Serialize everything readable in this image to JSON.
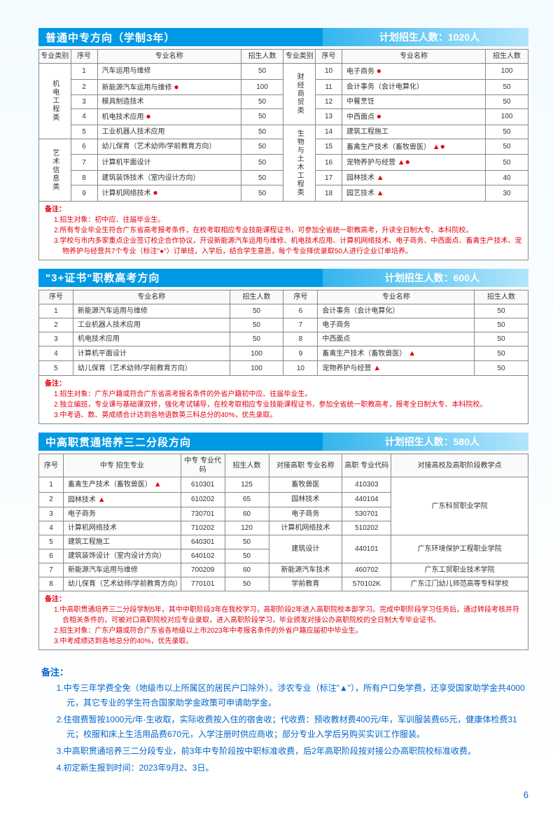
{
  "section1": {
    "title": "普通中专方向（学制3年）",
    "count": "计划招生人数：1020人",
    "headers": [
      "专业类别",
      "序号",
      "专业名称",
      "招生人数",
      "专业类别",
      "序号",
      "专业名称",
      "招生人数"
    ],
    "cat1": "机电工程类",
    "cat2": "艺术信息类",
    "cat3": "财经商贸类",
    "cat4": "生物与土木工程类",
    "rows_left": [
      {
        "n": "1",
        "name": "汽车运用与维修",
        "mark": "",
        "cnt": "50"
      },
      {
        "n": "2",
        "name": "新能源汽车运用与维修",
        "mark": "●",
        "cnt": "100"
      },
      {
        "n": "3",
        "name": "模具制造技术",
        "mark": "",
        "cnt": "50"
      },
      {
        "n": "4",
        "name": "机电技术应用",
        "mark": "●",
        "cnt": "50"
      },
      {
        "n": "5",
        "name": "工业机器人技术应用",
        "mark": "",
        "cnt": "50"
      },
      {
        "n": "6",
        "name": "幼儿保育（艺术幼师/学前教育方向）",
        "mark": "",
        "cnt": "50"
      },
      {
        "n": "7",
        "name": "计算机平面设计",
        "mark": "",
        "cnt": "50"
      },
      {
        "n": "8",
        "name": "建筑装饰技术（室内设计方向）",
        "mark": "",
        "cnt": "50"
      },
      {
        "n": "9",
        "name": "计算机网络技术",
        "mark": "●",
        "cnt": "50"
      }
    ],
    "rows_right": [
      {
        "n": "10",
        "name": "电子商务",
        "mark": "●",
        "cnt": "100"
      },
      {
        "n": "11",
        "name": "会计事务（会计电算化）",
        "mark": "",
        "cnt": "50"
      },
      {
        "n": "12",
        "name": "中餐烹饪",
        "mark": "",
        "cnt": "50"
      },
      {
        "n": "13",
        "name": "中西面点",
        "mark": "●",
        "cnt": "100"
      },
      {
        "n": "14",
        "name": "建筑工程施工",
        "mark": "",
        "cnt": "50"
      },
      {
        "n": "15",
        "name": "畜禽生产技术（畜牧兽医）",
        "mark": "▲●",
        "cnt": "50"
      },
      {
        "n": "16",
        "name": "宠物养护与经营",
        "mark": "▲●",
        "cnt": "50"
      },
      {
        "n": "17",
        "name": "园林技术",
        "mark": "▲",
        "cnt": "40"
      },
      {
        "n": "18",
        "name": "园艺技术",
        "mark": "▲",
        "cnt": "30"
      }
    ],
    "note_label": "备注：",
    "notes": [
      "1.招生对象：初中应、往届毕业生。",
      "2.所有专业毕业生符合广东省高考报考条件，在校考取相应专业技能课程证书，可参加全省统一职教高考，升读全日制大专、本科院校。",
      "3.学校与市内多家重点企业签订校企合作协议，开设新能源汽车运用与维修、机电技术应用、计算机网络技术、电子商务、中西面点、畜禽生产技术、宠物养护与经营共7个专业（标注\"●\"）订单班，入学后，结合学生意愿，每个专业择优录取50人进行企业订单培养。"
    ]
  },
  "section2": {
    "title": "\"3+证书\"职教高考方向",
    "count": "计划招生人数：600人",
    "headers": [
      "序号",
      "专业名称",
      "招生人数",
      "序号",
      "专业名称",
      "招生人数"
    ],
    "rows_left": [
      {
        "n": "1",
        "name": "新能源汽车运用与维修",
        "mark": "",
        "cnt": "50"
      },
      {
        "n": "2",
        "name": "工业机器人技术应用",
        "mark": "",
        "cnt": "50"
      },
      {
        "n": "3",
        "name": "机电技术应用",
        "mark": "",
        "cnt": "50"
      },
      {
        "n": "4",
        "name": "计算机平面设计",
        "mark": "",
        "cnt": "100"
      },
      {
        "n": "5",
        "name": "幼儿保育（艺术幼师/学前教育方向）",
        "mark": "",
        "cnt": "100"
      }
    ],
    "rows_right": [
      {
        "n": "6",
        "name": "会计事务（会计电算化）",
        "mark": "",
        "cnt": "50"
      },
      {
        "n": "7",
        "name": "电子商务",
        "mark": "",
        "cnt": "50"
      },
      {
        "n": "8",
        "name": "中西面点",
        "mark": "",
        "cnt": "50"
      },
      {
        "n": "9",
        "name": "畜禽生产技术（畜牧兽医）",
        "mark": "▲",
        "cnt": "50"
      },
      {
        "n": "10",
        "name": "宠物养护与经营",
        "mark": "▲",
        "cnt": "50"
      }
    ],
    "note_label": "备注：",
    "notes": [
      "1.招生对象：广东户籍或符合广东省高考报名条件的外省户籍初中应、往届毕业生。",
      "2.独立编班，专业课与基础课双修，强化考试辅导，在校考取相应专业技能课程证书，参加全省统一职教高考，报考全日制大专、本科院校。",
      "3.中考语、数、英成绩合计达到各地语数英三科总分的40%，优先录取。"
    ]
  },
  "section3": {
    "title": "中高职贯通培养三二分段方向",
    "count": "计划招生人数：580人",
    "headers": [
      "序号",
      "中专\n招生专业",
      "中专\n专业代码",
      "招生人数",
      "对接高职\n专业名称",
      "高职\n专业代码",
      "对接高校及高职阶段教学点"
    ],
    "rows": [
      {
        "n": "1",
        "zy": "畜禽生产技术（畜牧兽医）",
        "m": "▲",
        "code": "610301",
        "cnt": "125",
        "gj": "畜牧兽医",
        "gcode": "410303",
        "school": "广东科贸职业学院"
      },
      {
        "n": "2",
        "zy": "园林技术",
        "m": "▲",
        "code": "610202",
        "cnt": "65",
        "gj": "园林技术",
        "gcode": "440104",
        "school": ""
      },
      {
        "n": "3",
        "zy": "电子商务",
        "m": "",
        "code": "730701",
        "cnt": "60",
        "gj": "电子商务",
        "gcode": "530701",
        "school": ""
      },
      {
        "n": "4",
        "zy": "计算机网络技术",
        "m": "",
        "code": "710202",
        "cnt": "120",
        "gj": "计算机网络技术",
        "gcode": "510202",
        "school": ""
      },
      {
        "n": "5",
        "zy": "建筑工程施工",
        "m": "",
        "code": "640301",
        "cnt": "50",
        "gj": "",
        "gcode": "",
        "school": "广东环境保护工程职业学院"
      },
      {
        "n": "6",
        "zy": "建筑装饰设计（室内设计方向）",
        "m": "",
        "code": "640102",
        "cnt": "50",
        "gj": "建筑设计",
        "gcode": "440101",
        "school": ""
      },
      {
        "n": "7",
        "zy": "新能源汽车运用与维修",
        "m": "",
        "code": "700209",
        "cnt": "60",
        "gj": "新能源汽车技术",
        "gcode": "460702",
        "school": "广东工贸职业技术学院"
      },
      {
        "n": "8",
        "zy": "幼儿保育（艺术幼师/学前教育方向）",
        "m": "",
        "code": "770101",
        "cnt": "50",
        "gj": "学前教育",
        "gcode": "570102K",
        "school": "广东江门幼儿师范高等专科学校"
      }
    ],
    "note_label": "备注：",
    "notes": [
      "1.中高职贯通培养三二分段学制5年，其中中职阶段3年在我校学习，高职阶段2年进入高职院校本部学习。完成中职阶段学习任务后，通过转段考核并符合相关条件的，可被对口高职院校对应专业录取，进入高职阶段学习，毕业颁发对接公办高职院校的全日制大专毕业证书。",
      "2.招生对象：广东户籍或符合广东省各地级以上市2023年中考报名条件的外省户籍应届初中毕业生。",
      "3.中考成绩达到各地总分的40%，优先录取。"
    ]
  },
  "final": {
    "label": "备注：",
    "notes": [
      "1.中专三年学费全免（地级市以上所属区的居民户口除外）。涉农专业（标注\"▲\"），所有户口免学费，还享受国家助学金共4000元，其它专业的学生符合国家助学金政策可申请助学金。",
      "2.住宿费暂按1000元/年·生收取，实际收费按入住的宿舍收；代收费：预收教材费400元/年，军训服装费65元，健康体检费31元；校服和床上生活用品费670元，入学注册时供应商收；部分专业入学后另购买实训工作服装。",
      "3.中高职贯通培养三二分段专业，前3年中专阶段按中职标准收费，后2年高职阶段按对接公办高职院校标准收费。",
      "4.初定新生报到时间：2023年9月2、3日。"
    ]
  },
  "pagenum": "6"
}
